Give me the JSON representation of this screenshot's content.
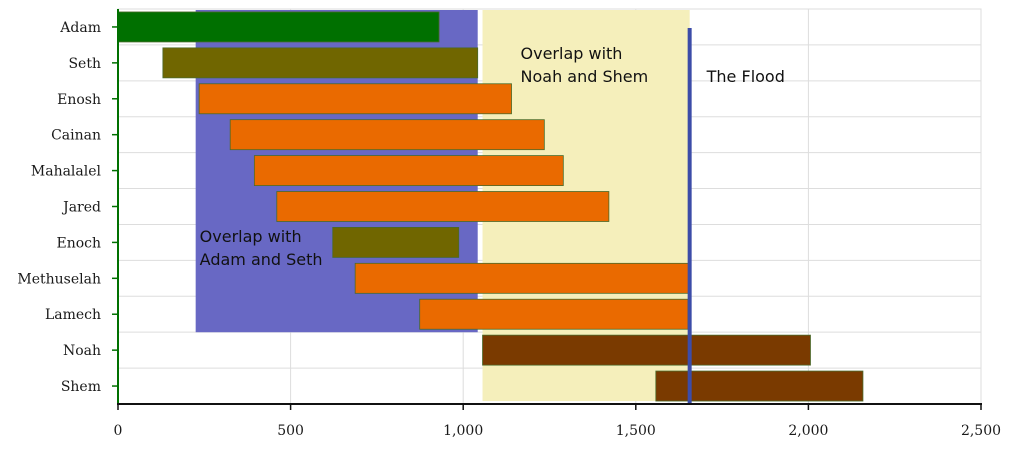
{
  "chart_data": {
    "type": "bar",
    "orientation": "horizontal-range",
    "categories": [
      "Adam",
      "Seth",
      "Enosh",
      "Cainan",
      "Mahalalel",
      "Jared",
      "Enoch",
      "Methuselah",
      "Lamech",
      "Noah",
      "Shem"
    ],
    "bars": [
      {
        "start": 0,
        "end": 930,
        "color": "#007000"
      },
      {
        "start": 130,
        "end": 1042,
        "color": "#706600"
      },
      {
        "start": 235,
        "end": 1140,
        "color": "#ea6a00"
      },
      {
        "start": 325,
        "end": 1235,
        "color": "#ea6a00"
      },
      {
        "start": 395,
        "end": 1290,
        "color": "#ea6a00"
      },
      {
        "start": 460,
        "end": 1422,
        "color": "#ea6a00"
      },
      {
        "start": 622,
        "end": 987,
        "color": "#706600"
      },
      {
        "start": 687,
        "end": 1656,
        "color": "#ea6a00"
      },
      {
        "start": 874,
        "end": 1651,
        "color": "#ea6a00"
      },
      {
        "start": 1056,
        "end": 2006,
        "color": "#7a3a00"
      },
      {
        "start": 1558,
        "end": 2158,
        "color": "#7a3a00"
      }
    ],
    "xlim": [
      0,
      2500
    ],
    "xticks": [
      0,
      500,
      1000,
      1500,
      2000,
      2500
    ],
    "xtick_labels": [
      "0",
      "500",
      "1,000",
      "1,500",
      "2,000",
      "2,500"
    ],
    "grid": true,
    "regions": [
      {
        "label_lines": [
          "Overlap with",
          "Adam and Seth"
        ],
        "start": 225,
        "end": 1042,
        "color": "#6868c4",
        "rows_from": 0,
        "rows_to": 8
      },
      {
        "label_lines": [
          "Overlap with",
          "Noah and Shem"
        ],
        "start": 1056,
        "end": 1656,
        "color": "#f5efbb",
        "rows_from": 0,
        "rows_to": 10
      }
    ],
    "vline": {
      "label": "The Flood",
      "x": 1656,
      "color": "#3c4ca8"
    }
  }
}
